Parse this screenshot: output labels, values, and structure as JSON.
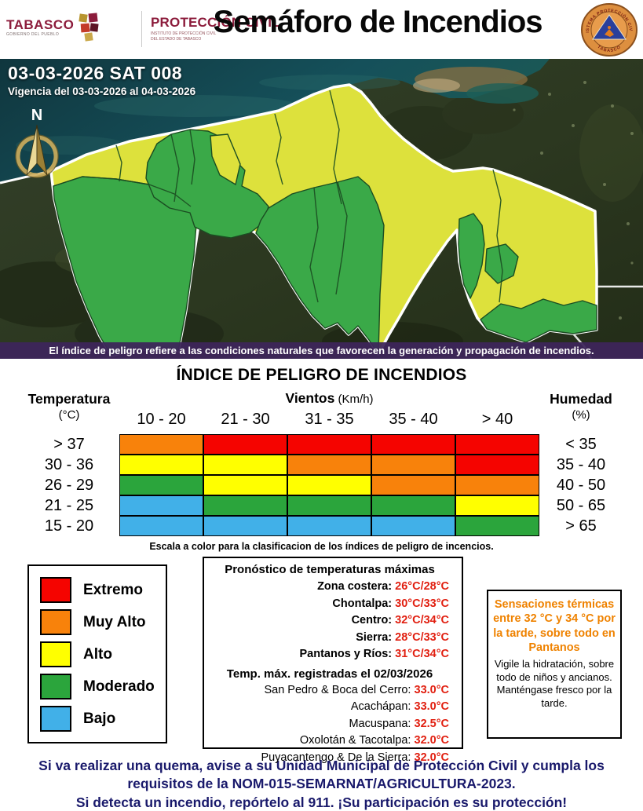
{
  "header": {
    "tabasco": {
      "name": "TABASCO",
      "subtitle": "GOBIERNO DEL PUEBLO"
    },
    "proteccion_civil": {
      "name": "PROTECCIÓN CIVIL",
      "line1": "INSTITUTO DE PROTECCIÓN CIVIL",
      "line2": "DEL ESTADO DE TABASCO"
    },
    "title": "Semáforo de Incendios",
    "seal": {
      "top": "SISTEMA PROTECCIÓN CIVIL",
      "bottom": "TABASCO"
    }
  },
  "map": {
    "bulletin_id": "03-03-2026 SAT 008",
    "vigencia": "Vigencia del 03-03-2026 al 04-03-2026",
    "compass": "N",
    "caption": "El índice de peligro refiere a las condiciones naturales que favorecen la generación y propagación de incendios."
  },
  "index_section": {
    "title": "ÍNDICE DE PELIGRO DE INCENDIOS",
    "temp_header": "Temperatura",
    "temp_unit": "(°C)",
    "wind_header": "Vientos",
    "wind_unit": " (Km/h)",
    "humidity_header": "Humedad",
    "humidity_unit": "(%)",
    "caption": "Escala a color para la clasificacion de los índices de peligro de incencios."
  },
  "chart_data": {
    "type": "heatmap",
    "title": "ÍNDICE DE PELIGRO DE INCENDIOS",
    "x_label": "Vientos (Km/h)",
    "x_categories": [
      "10 - 20",
      "21 - 30",
      "31 - 35",
      "35 - 40",
      "> 40"
    ],
    "y_left_label": "Temperatura (°C)",
    "y_left_categories": [
      "> 37",
      "30 - 36",
      "26 - 29",
      "21 - 25",
      "15 - 20"
    ],
    "y_right_label": "Humedad (%)",
    "y_right_categories": [
      "< 35",
      "35 - 40",
      "40 - 50",
      "50 - 65",
      "> 65"
    ],
    "cells": [
      [
        "orange",
        "red",
        "red",
        "red",
        "red"
      ],
      [
        "yellow",
        "yellow",
        "orange",
        "orange",
        "red"
      ],
      [
        "green",
        "yellow",
        "yellow",
        "orange",
        "orange"
      ],
      [
        "blue",
        "green",
        "green",
        "green",
        "yellow"
      ],
      [
        "blue",
        "blue",
        "blue",
        "blue",
        "green"
      ]
    ],
    "levels": {
      "red": "Extremo",
      "orange": "Muy Alto",
      "yellow": "Alto",
      "green": "Moderado",
      "blue": "Bajo"
    }
  },
  "colors": {
    "red": "#f50400",
    "orange": "#f8820b",
    "yellow": "#ffff00",
    "green": "#2ba53c",
    "blue": "#41b0e8",
    "map_green": "#3aa948",
    "map_yellow": "#dde13c",
    "purple_bar": "#3e255a",
    "maroon": "#8c1c3c",
    "accent_orange": "#ef8200",
    "value_red": "#e11f10",
    "footer_navy": "#19196b"
  },
  "legend": {
    "items": [
      {
        "label": "Extremo",
        "color": "red"
      },
      {
        "label": "Muy Alto",
        "color": "orange"
      },
      {
        "label": "Alto",
        "color": "yellow"
      },
      {
        "label": "Moderado",
        "color": "green"
      },
      {
        "label": "Bajo",
        "color": "blue"
      }
    ]
  },
  "forecast": {
    "title": "Pronóstico de temperaturas máximas",
    "zones": [
      {
        "label": "Zona costera:",
        "value": "26°C/28°C"
      },
      {
        "label": "Chontalpa:",
        "value": "30°C/33°C"
      },
      {
        "label": "Centro:",
        "value": "32°C/34°C"
      },
      {
        "label": "Sierra:",
        "value": "28°C/33°C"
      },
      {
        "label": "Pantanos y Ríos:",
        "value": "31°C/34°C"
      }
    ],
    "registered_title": "Temp. máx. registradas el 02/03/2026",
    "stations": [
      {
        "label": "San Pedro & Boca del Cerro:",
        "value": "33.0°C"
      },
      {
        "label": "Acachápan:",
        "value": "33.0°C"
      },
      {
        "label": "Macuspana:",
        "value": "32.5°C"
      },
      {
        "label": "Oxolotán & Tacotalpa:",
        "value": "32.0°C"
      },
      {
        "label": "Puyacantengo & De la Sierra:",
        "value": "32.0°C"
      }
    ]
  },
  "sensations": {
    "highlight": "Sensaciones térmicas entre 32 °C y 34 °C por la tarde, sobre todo en Pantanos",
    "body": "Vigile la hidratación, sobre todo de niños y ancianos. Manténgase fresco por la tarde."
  },
  "footer": {
    "line1": "Si va realizar una quema, avise a su Unidad Municipal de Protección Civil y cumpla los requisitos de la NOM-015-SEMARNAT/AGRICULTURA-2023.",
    "line2": "Si detecta un incendio, repórtelo al 911. ¡Su participación es su protección!"
  }
}
